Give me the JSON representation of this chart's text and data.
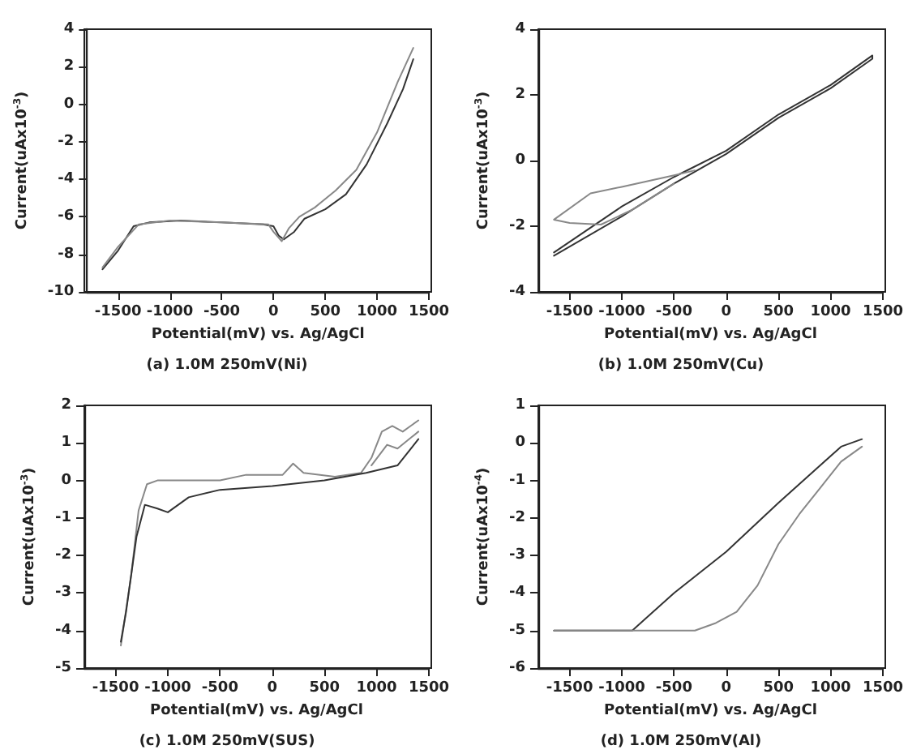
{
  "chart_data": [
    {
      "type": "line",
      "xlabel": "Potential(mV) vs. Ag/AgCl",
      "ylabel": "Current(uAx10$^{-3}$)",
      "annotations": [
        "(a) 1.0M 250mV(Ni)"
      ],
      "xlim": [
        -1800,
        1500
      ],
      "xticks": [
        -1500,
        -1000,
        -500,
        0,
        500,
        1000,
        1500
      ],
      "ylim": [
        -10,
        4
      ],
      "yticks": [
        -10,
        -8,
        -6,
        -4,
        -2,
        0,
        2,
        4
      ],
      "marker": "none",
      "line_style": "solid",
      "grid": false,
      "series": [
        {
          "color": "#333333",
          "x": [
            -1650,
            -1500,
            -1350,
            -1200,
            -900,
            -500,
            -100,
            0,
            50,
            100,
            200,
            300,
            500,
            700,
            900,
            1100,
            1250,
            1350
          ],
          "values": [
            -8.8,
            -7.8,
            -6.5,
            -6.3,
            -6.2,
            -6.3,
            -6.4,
            -6.5,
            -7.0,
            -7.2,
            -6.8,
            -6.1,
            -5.6,
            -4.8,
            -3.2,
            -1.0,
            0.8,
            2.4
          ]
        },
        {
          "color": "#888888",
          "x": [
            1350,
            1200,
            1000,
            800,
            600,
            400,
            250,
            150,
            80,
            0,
            -50,
            -500,
            -1000,
            -1300,
            -1500,
            -1650
          ],
          "values": [
            3.0,
            1.2,
            -1.5,
            -3.5,
            -4.6,
            -5.5,
            -6.0,
            -6.6,
            -7.3,
            -6.8,
            -6.4,
            -6.3,
            -6.2,
            -6.4,
            -7.6,
            -8.7
          ]
        }
      ]
    },
    {
      "type": "line",
      "xlabel": "Potential(mV) vs. Ag/AgCl",
      "ylabel": "Current(uAx10$^{-3}$)",
      "annotations": [
        "(b) 1.0M 250mV(Cu)"
      ],
      "xlim": [
        -1800,
        1500
      ],
      "xticks": [
        -1500,
        -1000,
        -500,
        0,
        500,
        1000,
        1500
      ],
      "ylim": [
        -4,
        4
      ],
      "yticks": [
        -4,
        -2,
        0,
        2,
        4
      ],
      "marker": "none",
      "line_style": "solid",
      "grid": false,
      "series": [
        {
          "color": "#333333",
          "x": [
            -1650,
            -1000,
            -500,
            0,
            500,
            1000,
            1400,
            1400,
            1000,
            500,
            0,
            -500,
            -1000,
            -1650
          ],
          "values": [
            -2.9,
            -1.7,
            -0.7,
            0.2,
            1.3,
            2.2,
            3.1,
            3.2,
            2.3,
            1.4,
            0.3,
            -0.5,
            -1.4,
            -2.8
          ]
        },
        {
          "color": "#888888",
          "x": [
            -300,
            -500,
            -1000,
            -1300,
            -1650,
            -1500,
            -1200,
            -900,
            -500
          ],
          "values": [
            -0.3,
            -0.45,
            -0.8,
            -1.0,
            -1.8,
            -1.9,
            -1.95,
            -1.5,
            -0.7
          ]
        }
      ]
    },
    {
      "type": "line",
      "xlabel": "Potential(mV) vs. Ag/AgCl",
      "ylabel": "Current(uAx10$^{-3}$)",
      "annotations": [
        "(c) 1.0M 250mV(SUS)"
      ],
      "xlim": [
        -1800,
        1500
      ],
      "xticks": [
        -1500,
        -1000,
        -500,
        0,
        500,
        1000,
        1500
      ],
      "ylim": [
        -5,
        2
      ],
      "yticks": [
        -5,
        -4,
        -3,
        -2,
        -1,
        0,
        1,
        2
      ],
      "marker": "none",
      "line_style": "solid",
      "grid": false,
      "series": [
        {
          "color": "#888888",
          "x": [
            -1450,
            -1350,
            -1280,
            -1200,
            -1100,
            -500,
            -250,
            -100,
            100,
            200,
            300,
            600,
            850,
            950,
            1050,
            1150,
            1250,
            1400
          ],
          "values": [
            -4.4,
            -2.5,
            -0.8,
            -0.1,
            0,
            0,
            0.15,
            0.15,
            0.15,
            0.45,
            0.2,
            0.1,
            0.2,
            0.6,
            1.3,
            1.45,
            1.3,
            1.6
          ]
        },
        {
          "color": "#888888",
          "x": [
            950,
            1100,
            1200,
            1400
          ],
          "values": [
            0.4,
            0.95,
            0.85,
            1.3
          ]
        },
        {
          "color": "#333333",
          "x": [
            1400,
            1200,
            900,
            500,
            0,
            -500,
            -800,
            -1000,
            -1100,
            -1220,
            -1300,
            -1400,
            -1450
          ],
          "values": [
            1.1,
            0.4,
            0.2,
            0.0,
            -0.15,
            -0.25,
            -0.45,
            -0.85,
            -0.75,
            -0.65,
            -1.5,
            -3.5,
            -4.3
          ]
        }
      ]
    },
    {
      "type": "line",
      "xlabel": "Potential(mV) vs. Ag/AgCl",
      "ylabel": "Current(uAx10$^{-4}$)",
      "annotations": [
        "(d) 1.0M 250mV(Al)"
      ],
      "xlim": [
        -1800,
        1500
      ],
      "xticks": [
        -1500,
        -1000,
        -500,
        0,
        500,
        1000,
        1500
      ],
      "ylim": [
        -6,
        1
      ],
      "yticks": [
        -6,
        -5,
        -4,
        -3,
        -2,
        -1,
        0,
        1
      ],
      "marker": "none",
      "line_style": "solid",
      "grid": false,
      "series": [
        {
          "color": "#333333",
          "x": [
            -1650,
            -900,
            -500,
            0,
            500,
            900,
            1100,
            1300
          ],
          "values": [
            -5,
            -5,
            -4,
            -2.9,
            -1.6,
            -0.6,
            -0.1,
            0.1
          ]
        },
        {
          "color": "#888888",
          "x": [
            1300,
            1100,
            900,
            700,
            500,
            300,
            100,
            -100,
            -300,
            -1650
          ],
          "values": [
            -0.1,
            -0.5,
            -1.2,
            -1.9,
            -2.7,
            -3.8,
            -4.5,
            -4.8,
            -5,
            -5
          ]
        }
      ]
    }
  ]
}
